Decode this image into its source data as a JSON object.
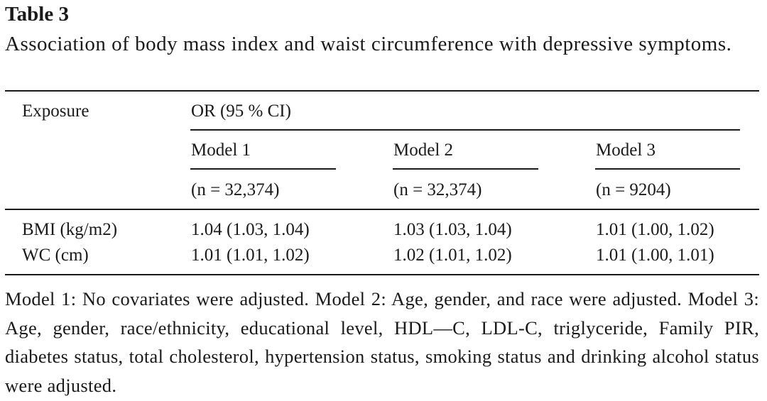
{
  "table": {
    "label": "Table 3",
    "caption": "Association of body mass index and waist circumference with depressive symptoms.",
    "headers": {
      "exposure": "Exposure",
      "or_group": "OR (95 % CI)",
      "models": [
        {
          "name": "Model 1",
          "n": "(n = 32,374)"
        },
        {
          "name": "Model 2",
          "n": "(n = 32,374)"
        },
        {
          "name": "Model 3",
          "n": "(n = 9204)"
        }
      ]
    },
    "rows": [
      {
        "exposure": "BMI (kg/m2)",
        "values": [
          "1.04 (1.03, 1.04)",
          "1.03 (1.03, 1.04)",
          "1.01 (1.00, 1.02)"
        ]
      },
      {
        "exposure": "WC (cm)",
        "values": [
          "1.01 (1.01, 1.02)",
          "1.02 (1.01, 1.02)",
          "1.01 (1.00, 1.01)"
        ]
      }
    ],
    "footnote": "Model 1: No covariates were adjusted. Model 2: Age, gender, and race were adjusted. Model 3: Age, gender, race/ethnicity, educational level, HDL—C, LDL-C, triglyceride, Family PIR, diabetes status, total cholesterol, hypertension status, smoking status and drinking alcohol status were adjusted."
  }
}
